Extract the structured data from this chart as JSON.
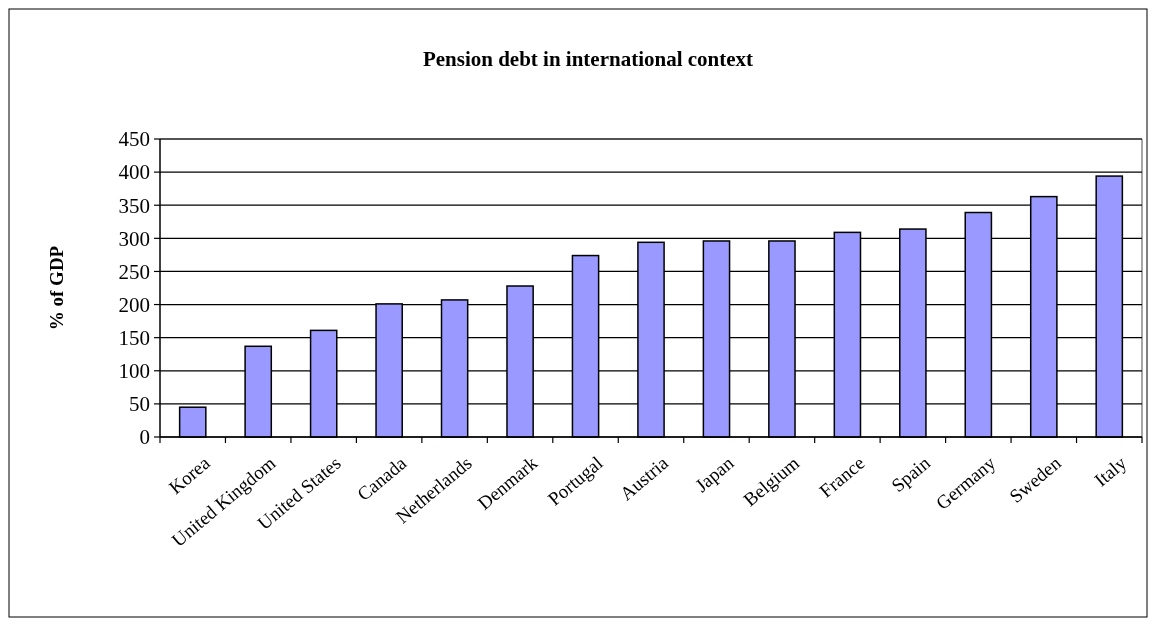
{
  "chart_data": {
    "type": "bar",
    "title": "Pension debt in international context",
    "ylabel": "% of GDP",
    "categories": [
      "Korea",
      "United Kingdom",
      "United States",
      "Canada",
      "Netherlands",
      "Denmark",
      "Portugal",
      "Austria",
      "Japan",
      "Belgium",
      "France",
      "Spain",
      "Germany",
      "Sweden",
      "Italy"
    ],
    "values": [
      45,
      137,
      161,
      201,
      207,
      228,
      274,
      294,
      296,
      296,
      309,
      314,
      339,
      363,
      394
    ],
    "color": "#9999ff",
    "ylim": [
      0,
      450
    ],
    "yticks": [
      0,
      50,
      100,
      150,
      200,
      250,
      300,
      350,
      400,
      450
    ],
    "grid": "y"
  }
}
